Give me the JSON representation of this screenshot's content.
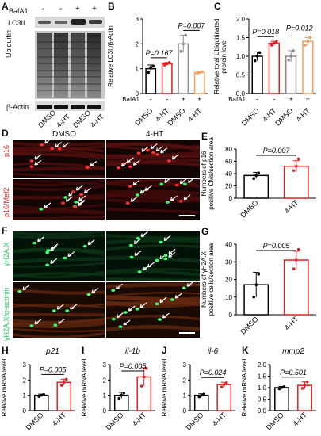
{
  "panels": {
    "A": {
      "letter": "A",
      "bafa1_label": "BafA1",
      "treatment_signs": [
        "-",
        "-",
        "+",
        "+"
      ],
      "bands": [
        "LC3II",
        "Ubiquitin",
        "β-Actin"
      ],
      "lanes": [
        "DMSO",
        "4-HT",
        "DMSO",
        "4-HT"
      ]
    },
    "D": {
      "letter": "D",
      "col_titles": [
        "DMSO",
        "4-HT"
      ],
      "row_labels": [
        "p16",
        "p16/Mef2"
      ]
    },
    "F": {
      "letter": "F",
      "row_labels": [
        "γH2A.X",
        "γH2A.X/α-actinin"
      ]
    }
  },
  "chart_data": [
    {
      "id": "B",
      "type": "bar",
      "letter": "B",
      "ylabel": "Relative LC3II/β-Actin",
      "categories": [
        "DMSO",
        "4-HT",
        "DMSO",
        "4-HT"
      ],
      "bafa1": [
        "-",
        "-",
        "+",
        "+"
      ],
      "bafa1_label": "BafA1",
      "values": [
        1.0,
        1.2,
        2.0,
        0.85
      ],
      "errors": [
        0.15,
        0.05,
        0.35,
        0.03
      ],
      "points": [
        [
          0.85,
          1.05,
          1.1
        ],
        [
          1.15,
          1.2,
          1.25
        ],
        [
          1.7,
          2.0,
          2.35
        ],
        [
          0.82,
          0.85,
          0.88
        ]
      ],
      "ylim": [
        0,
        3
      ],
      "yticks": [
        0,
        1,
        2,
        3
      ],
      "colors": [
        "#000000",
        "#e02020",
        "#8c8c8c",
        "#f0a060"
      ],
      "annotations": [
        {
          "text": "P=0.167",
          "from": 0,
          "to": 1
        },
        {
          "text": "P=0.007",
          "from": 2,
          "to": 3
        }
      ]
    },
    {
      "id": "C",
      "type": "bar",
      "letter": "C",
      "ylabel": "Relative total Ubiquitinated protein level",
      "categories": [
        "DMSO",
        "4-HT",
        "DMSO",
        "4-HT"
      ],
      "bafa1": [
        "-",
        "-",
        "+",
        "+"
      ],
      "bafa1_label": "BafA1",
      "values": [
        1.0,
        1.35,
        1.0,
        1.4
      ],
      "errors": [
        0.12,
        0.05,
        0.15,
        0.1
      ],
      "points": [
        [
          0.88,
          1.0,
          1.1
        ],
        [
          1.3,
          1.35,
          1.4
        ],
        [
          0.9,
          1.0,
          1.15
        ],
        [
          1.3,
          1.4,
          1.5
        ]
      ],
      "ylim": [
        0,
        2
      ],
      "yticks": [
        0.0,
        0.5,
        1.0,
        1.5,
        2.0
      ],
      "colors": [
        "#000000",
        "#e02020",
        "#8c8c8c",
        "#f0a060"
      ],
      "annotations": [
        {
          "text": "P=0.018",
          "from": 0,
          "to": 1
        },
        {
          "text": "P=0.012",
          "from": 2,
          "to": 3
        }
      ]
    },
    {
      "id": "E",
      "type": "bar",
      "letter": "E",
      "ylabel": "Numbers of p16 positive CMs/section area",
      "categories": [
        "DMSO",
        "4-HT"
      ],
      "values": [
        37,
        52
      ],
      "errors": [
        5,
        9
      ],
      "points": [
        [
          32,
          37,
          41
        ],
        [
          45,
          52,
          64
        ]
      ],
      "ylim": [
        0,
        80
      ],
      "yticks": [
        0,
        20,
        40,
        60,
        80
      ],
      "colors": [
        "#000000",
        "#e02020"
      ],
      "annotations": [
        {
          "text": "P=0.007"
        }
      ]
    },
    {
      "id": "G",
      "type": "bar",
      "letter": "G",
      "ylabel": "Numbers of γH2A.X positive cells/section area",
      "categories": [
        "DMSO",
        "4-HT"
      ],
      "values": [
        17,
        31
      ],
      "errors": [
        7,
        5
      ],
      "points": [
        [
          10,
          17,
          23
        ],
        [
          26,
          31,
          37
        ]
      ],
      "ylim": [
        0,
        40
      ],
      "yticks": [
        0,
        10,
        20,
        30,
        40
      ],
      "colors": [
        "#000000",
        "#e02020"
      ],
      "annotations": [
        {
          "text": "P=0.005"
        }
      ]
    },
    {
      "id": "H",
      "type": "bar",
      "letter": "H",
      "gene": "p21",
      "ylabel": "Relative mRNA level",
      "categories": [
        "DMSO",
        "4-HT"
      ],
      "values": [
        1.0,
        1.85
      ],
      "errors": [
        0.08,
        0.2
      ],
      "points": [
        [
          0.92,
          1.0,
          1.05
        ],
        [
          1.65,
          1.85,
          2.05
        ]
      ],
      "ylim": [
        0,
        3
      ],
      "yticks": [
        0,
        1,
        2,
        3
      ],
      "colors": [
        "#000000",
        "#e02020"
      ],
      "annotations": [
        {
          "text": "P=0.005"
        }
      ]
    },
    {
      "id": "I",
      "type": "bar",
      "letter": "I",
      "gene": "il-1b",
      "ylabel": "Relative mRNA level",
      "categories": [
        "DMSO",
        "4-HT"
      ],
      "values": [
        1.0,
        2.2
      ],
      "errors": [
        0.2,
        0.6
      ],
      "points": [
        [
          0.8,
          1.0,
          1.15
        ],
        [
          1.6,
          2.2,
          2.75
        ]
      ],
      "ylim": [
        0,
        3
      ],
      "yticks": [
        0,
        1,
        2,
        3
      ],
      "colors": [
        "#000000",
        "#e02020"
      ],
      "annotations": [
        {
          "text": "P=0.005"
        }
      ]
    },
    {
      "id": "J",
      "type": "bar",
      "letter": "J",
      "gene": "il-6",
      "ylabel": "Relative mRNA level",
      "categories": [
        "DMSO",
        "4-HT"
      ],
      "values": [
        1.0,
        1.7
      ],
      "errors": [
        0.1,
        0.15
      ],
      "points": [
        [
          0.9,
          1.0,
          1.08
        ],
        [
          1.55,
          1.7,
          1.82
        ]
      ],
      "ylim": [
        0,
        3
      ],
      "yticks": [
        0,
        1,
        2,
        3
      ],
      "colors": [
        "#000000",
        "#e02020"
      ],
      "annotations": [
        {
          "text": "P=0.024"
        }
      ]
    },
    {
      "id": "K",
      "type": "bar",
      "letter": "K",
      "gene": "mmp2",
      "ylabel": "Relative mRNA level",
      "categories": [
        "DMSO",
        "4-HT"
      ],
      "values": [
        1.0,
        1.1
      ],
      "errors": [
        0.05,
        0.15
      ],
      "points": [
        [
          0.95,
          1.0,
          1.04
        ],
        [
          0.97,
          1.1,
          1.25
        ]
      ],
      "ylim": [
        0,
        2
      ],
      "yticks": [
        0.0,
        0.5,
        1.0,
        1.5,
        2.0
      ],
      "colors": [
        "#000000",
        "#e02020"
      ],
      "annotations": [
        {
          "text": "P=0.501"
        }
      ]
    }
  ]
}
